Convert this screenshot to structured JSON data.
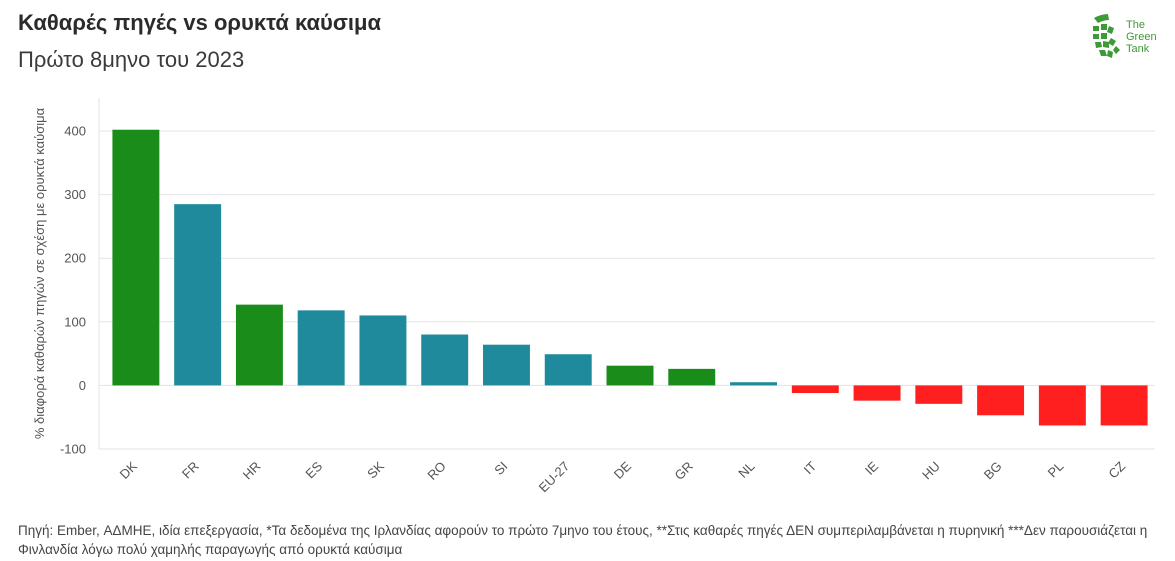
{
  "header": {
    "title": "Καθαρές πηγές vs ορυκτά καύσιμα",
    "subtitle": "Πρώτο 8μηνο του 2023"
  },
  "logo": {
    "line1": "The",
    "line2": "Green",
    "line3": "Tank",
    "color": "#3d9a35"
  },
  "note": "Πηγή: Ember, ΑΔΜΗΕ, ιδία επεξεργασία, *Τα δεδομένα της Ιρλανδίας αφορούν το πρώτο 7μηνο του έτους, **Στις καθαρές πηγές ΔΕΝ συμπεριλαμβάνεται η πυρηνική ***Δεν παρουσιάζεται η Φινλανδία λόγω πολύ χαμηλής παραγωγής από ορυκτά καύσιμα",
  "chart_data": {
    "type": "bar",
    "title": "Καθαρές πηγές vs ορυκτά καύσιμα",
    "subtitle": "Πρώτο 8μηνο του 2023",
    "xlabel": "",
    "ylabel": "% διαφορά καθαρών πηγών σε σχέση με ορυκτά καύσιμα",
    "ylim": [
      -100,
      400
    ],
    "yticks": [
      -100,
      0,
      100,
      200,
      300,
      400
    ],
    "grid": true,
    "categories": [
      "DK",
      "FR",
      "HR",
      "ES",
      "SK",
      "RO",
      "SI",
      "EU-27",
      "DE",
      "GR",
      "NL",
      "IT",
      "IE",
      "HU",
      "BG",
      "PL",
      "CZ"
    ],
    "values": [
      402,
      285,
      127,
      118,
      110,
      80,
      64,
      49,
      31,
      26,
      5,
      -12,
      -24,
      -29,
      -47,
      -63,
      -63
    ],
    "colors": [
      "#1a8c1a",
      "#1f8a9c",
      "#1a8c1a",
      "#1f8a9c",
      "#1f8a9c",
      "#1f8a9c",
      "#1f8a9c",
      "#1f8a9c",
      "#1a8c1a",
      "#1a8c1a",
      "#1f8a9c",
      "#ff1f1f",
      "#ff1f1f",
      "#ff1f1f",
      "#ff1f1f",
      "#ff1f1f",
      "#ff1f1f"
    ]
  }
}
